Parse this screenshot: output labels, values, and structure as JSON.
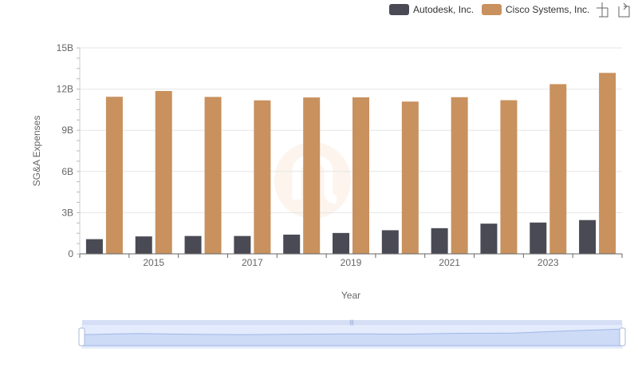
{
  "chart_data": {
    "type": "bar",
    "categories": [
      "2014",
      "2015",
      "2016",
      "2017",
      "2018",
      "2019",
      "2020",
      "2021",
      "2022",
      "2023",
      "2024"
    ],
    "x_tick_labels": [
      "2015",
      "2017",
      "2019",
      "2021",
      "2023"
    ],
    "series": [
      {
        "name": "Autodesk, Inc.",
        "color": "#4a4a55",
        "values": [
          1.07,
          1.27,
          1.3,
          1.3,
          1.4,
          1.52,
          1.72,
          1.87,
          2.2,
          2.28,
          2.46
        ]
      },
      {
        "name": "Cisco Systems, Inc.",
        "color": "#c8915e",
        "values": [
          11.44,
          11.86,
          11.43,
          11.18,
          11.39,
          11.4,
          11.09,
          11.41,
          11.19,
          12.36,
          13.18
        ]
      }
    ],
    "units": "billions USD",
    "xlabel": "Year",
    "ylabel": "SG&A Expenses",
    "ylim": [
      0,
      15
    ],
    "y_ticks": [
      0,
      3,
      6,
      9,
      12,
      15
    ],
    "y_tick_labels": [
      "0",
      "3B",
      "6B",
      "9B",
      "12B",
      "15B"
    ],
    "grid": true,
    "legend_position": "top-right"
  },
  "toolbar": {
    "zoom_icon": "zoom-icon",
    "restore_icon": "restore-icon"
  },
  "zoom_slider": {
    "range_start": 0,
    "range_end": 1,
    "fill_color": "#d6e2fb",
    "border_color": "#c5d2ef"
  }
}
